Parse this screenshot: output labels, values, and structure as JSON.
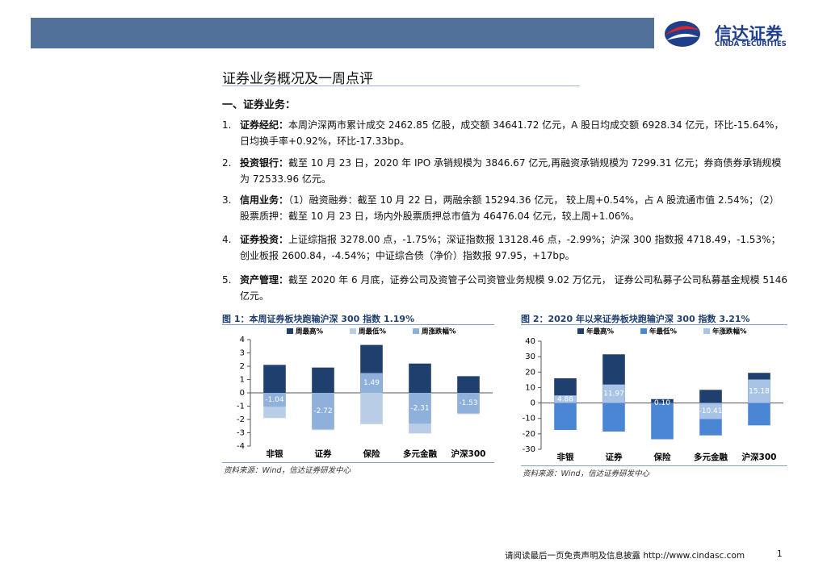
{
  "header": {
    "brand": "信达证券",
    "brand_en": "CINDA SECURITIES"
  },
  "section_title": "证券业务概况及一周点评",
  "subheading": "一、证券业务：",
  "items": [
    {
      "number": "1.",
      "label": "证券经纪：",
      "text": "本周沪深两市累计成交 2462.85 亿股，成交额 34641.72 亿元，A 股日均成交额 6928.34 亿元，环比-15.64%，日均换手率+0.92%，环比-17.33bp。"
    },
    {
      "number": "2.",
      "label": "投资银行：",
      "text": "截至 10 月 23 日，2020 年 IPO 承销规模为 3846.67 亿元,再融资承销规模为 7299.31 亿元；券商债券承销规模为 72533.96 亿元。"
    },
    {
      "number": "3.",
      "label": "信用业务：",
      "text": "（1）融资融券：截至 10 月 22 日，两融余额 15294.36 亿元， 较上周+0.54%，占 A 股流通市值 2.54%；（2）股票质押：截至 10 月 23 日，场内外股票质押总市值为 46476.04 亿元，较上周+1.06%。"
    },
    {
      "number": "4.",
      "label": "证券投资：",
      "text": "上证综指报 3278.00 点，-1.75%；深证指数报 13128.46 点，-2.99%；沪深 300 指数报 4718.49，-1.53%；创业板报 2600.84，-4.54%；中证综合债（净价）指数报 97.95，+17bp。"
    },
    {
      "number": "5.",
      "label": "资产管理：",
      "text": "截至 2020 年 6 月底，证券公司及资管子公司资管业务规模 9.02 万亿元， 证券公司私募子公司私募基金规模 5146 亿元。"
    }
  ],
  "chart_data": [
    {
      "type": "bar",
      "title": "图 1：本周证券板块跑输沪深 300 指数 1.19%",
      "categories": [
        "非银",
        "证券",
        "保险",
        "多元金融",
        "沪深300"
      ],
      "series": [
        {
          "name": "周最高%",
          "color": "#1f3f6e",
          "values": [
            2.1,
            1.9,
            3.6,
            2.2,
            1.25
          ]
        },
        {
          "name": "周最低%",
          "color": "#b9cde6",
          "values": [
            -1.9,
            -2.8,
            -2.35,
            -3.05,
            -1.6
          ]
        },
        {
          "name": "周涨跌幅%",
          "color": "#8fb0db",
          "values": [
            -1.04,
            -2.72,
            1.49,
            -2.31,
            -1.53
          ]
        }
      ],
      "ylim": [
        -4,
        4
      ],
      "yticks": [
        -4,
        -3,
        -2,
        -1,
        0,
        1,
        2,
        3,
        4
      ],
      "source": "资料来源：Wind，信达证券研发中心"
    },
    {
      "type": "bar",
      "title": "图 2：2020 年以来证券板块跑输沪深 300 指数 3.21%",
      "categories": [
        "非银",
        "证券",
        "保险",
        "多元金融",
        "沪深300"
      ],
      "series": [
        {
          "name": "年最高%",
          "color": "#1f3f6e",
          "values": [
            16,
            31.5,
            2.5,
            8.5,
            19.5
          ]
        },
        {
          "name": "年最低%",
          "color": "#4a86d4",
          "values": [
            -17.5,
            -18.5,
            -23.5,
            -21,
            -14.5
          ]
        },
        {
          "name": "年涨跌幅%",
          "color": "#a9c3e6",
          "values": [
            4.88,
            11.97,
            0.1,
            -10.41,
            15.18
          ],
          "value_labels": [
            "4.88",
            "11.97",
            "0.10",
            "-10.41",
            "15.18"
          ]
        }
      ],
      "ylim": [
        -30,
        40
      ],
      "yticks": [
        -30,
        -20,
        -10,
        0,
        10,
        20,
        30,
        40
      ],
      "source": "资料来源：Wind，信达证券研发中心"
    }
  ],
  "footer": {
    "note": "请阅读最后一页免责声明及信息披露 http://www.cindasc.com",
    "page": "1"
  }
}
